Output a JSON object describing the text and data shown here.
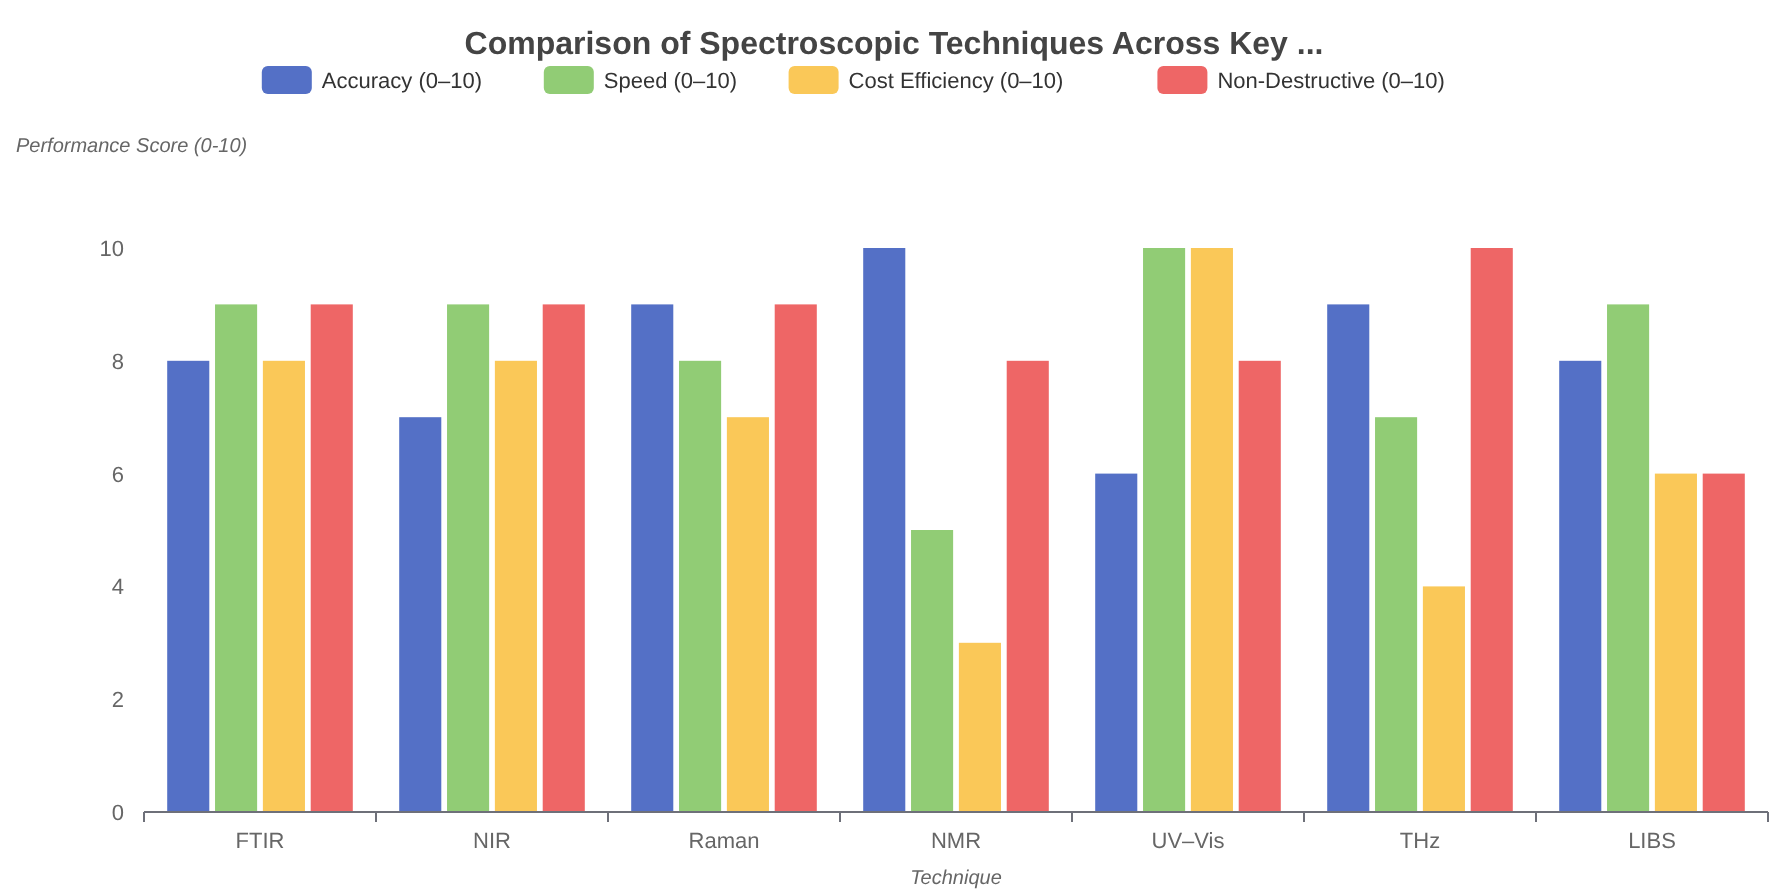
{
  "chart_data": {
    "type": "bar",
    "title": "Comparison of Spectroscopic Techniques Across Key ...",
    "xlabel": "Technique",
    "ylabel": "Performance Score (0-10)",
    "categories": [
      "FTIR",
      "NIR",
      "Raman",
      "NMR",
      "UV–Vis",
      "THz",
      "LIBS"
    ],
    "series": [
      {
        "name": "Accuracy (0–10)",
        "color": "#5470c6",
        "values": [
          8,
          7,
          9,
          10,
          6,
          9,
          8
        ]
      },
      {
        "name": "Speed (0–10)",
        "color": "#91cc75",
        "values": [
          9,
          9,
          8,
          5,
          10,
          7,
          9
        ]
      },
      {
        "name": "Cost Efficiency (0–10)",
        "color": "#fac858",
        "values": [
          8,
          8,
          7,
          3,
          10,
          4,
          6
        ]
      },
      {
        "name": "Non-Destructive (0–10)",
        "color": "#ee6666",
        "values": [
          9,
          9,
          9,
          8,
          8,
          10,
          6
        ]
      }
    ],
    "ylim": [
      0,
      10
    ],
    "yticks": [
      0,
      2,
      4,
      6,
      8,
      10
    ],
    "grid": false,
    "legend": "top"
  }
}
